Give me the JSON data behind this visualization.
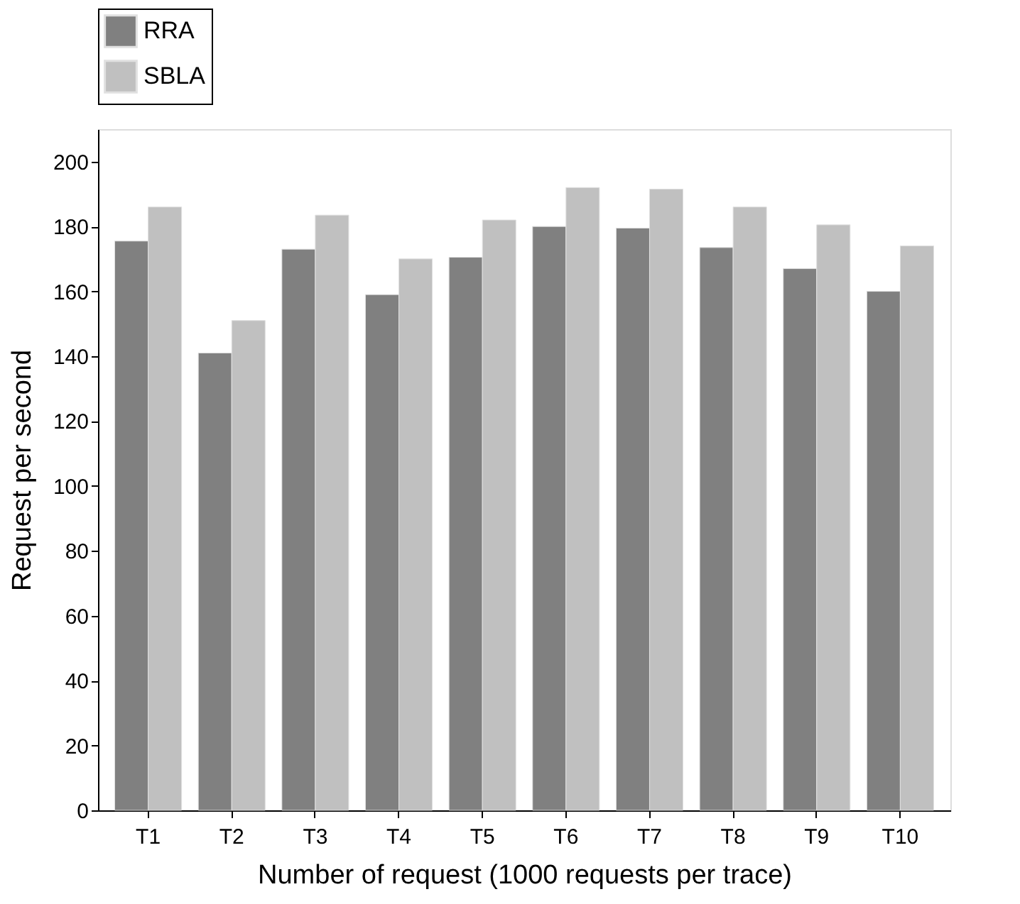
{
  "chart_data": {
    "type": "bar",
    "xlabel": "Number of request (1000 requests per trace)",
    "ylabel": "Request per second",
    "categories": [
      "T1",
      "T2",
      "T3",
      "T4",
      "T5",
      "T6",
      "T7",
      "T8",
      "T9",
      "T10"
    ],
    "series": [
      {
        "name": "RRA",
        "color": "#808080",
        "values": [
          175.5,
          141,
          173,
          159,
          170.5,
          180,
          179.5,
          173.5,
          167,
          160
        ]
      },
      {
        "name": "SBLA",
        "color": "#c0c0c0",
        "values": [
          186,
          151,
          183.5,
          170,
          182,
          192,
          191.5,
          186,
          180.5,
          174
        ]
      }
    ],
    "ylim": [
      0,
      210
    ],
    "yticks": [
      0,
      20,
      40,
      60,
      80,
      100,
      120,
      140,
      160,
      180,
      200
    ],
    "grid": false,
    "legend": "top"
  }
}
